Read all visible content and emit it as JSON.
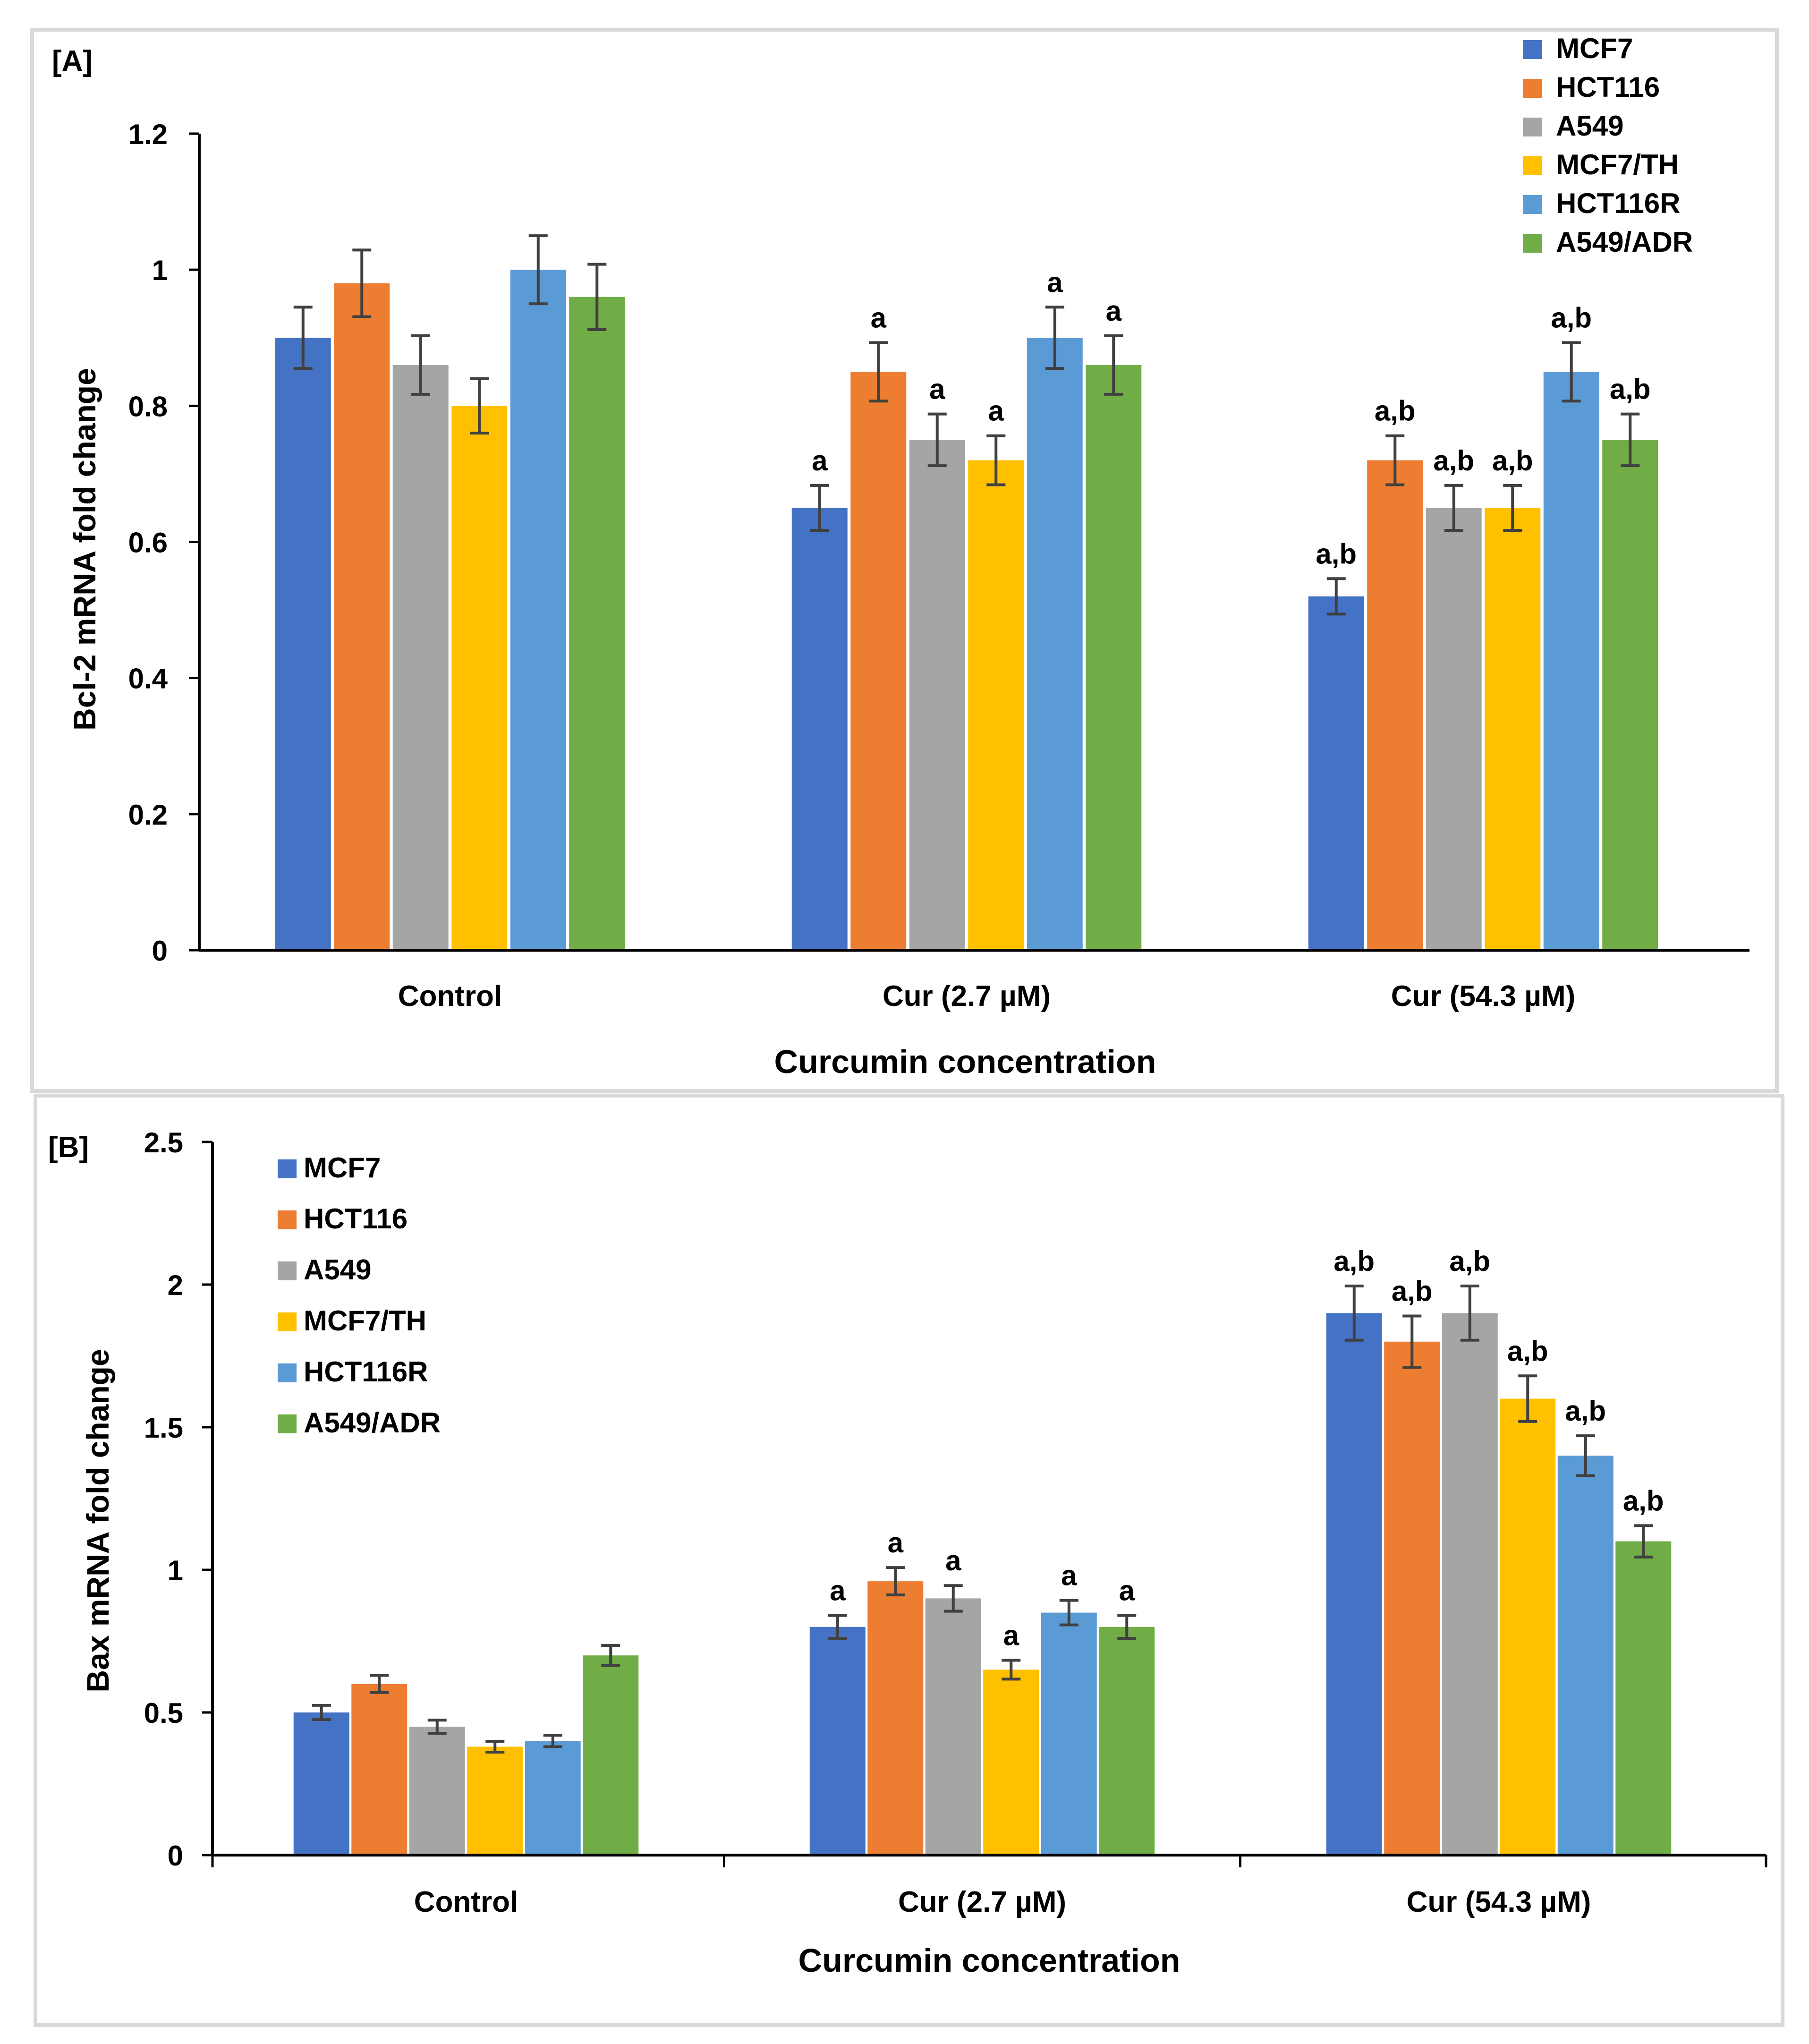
{
  "colors": {
    "MCF7": "#4472c4",
    "HCT116": "#ed7d31",
    "A549": "#a5a5a5",
    "MCF7/TH": "#ffc000",
    "HCT116R": "#5b9bd5",
    "A549/ADR": "#70ad47",
    "axis": "#000000",
    "errorbar": "#404040",
    "panel_border": "#d9d9d9"
  },
  "chart_data": [
    {
      "panel": "[A]",
      "type": "bar",
      "title": "",
      "xlabel": "Curcumin concentration",
      "ylabel": "Bcl-2 mRNA fold change",
      "ylim": [
        0,
        1.2
      ],
      "yticks": [
        "0",
        "0.2",
        "0.4",
        "0.6",
        "0.8",
        "1",
        "1.2"
      ],
      "ytick_values": [
        0,
        0.2,
        0.4,
        0.6,
        0.8,
        1,
        1.2
      ],
      "categories": [
        "Control",
        "Cur (2.7  µM)",
        "Cur (54.3 µM)"
      ],
      "legend_position": "top-right",
      "series": [
        {
          "name": "MCF7",
          "values": [
            0.9,
            0.65,
            0.52
          ],
          "errors": [
            0.045,
            0.033,
            0.026
          ],
          "annotations": [
            "",
            "a",
            "a,b"
          ]
        },
        {
          "name": "HCT116",
          "values": [
            0.98,
            0.85,
            0.72
          ],
          "errors": [
            0.049,
            0.043,
            0.036
          ],
          "annotations": [
            "",
            "a",
            "a,b"
          ]
        },
        {
          "name": "A549",
          "values": [
            0.86,
            0.75,
            0.65
          ],
          "errors": [
            0.043,
            0.038,
            0.033
          ],
          "annotations": [
            "",
            "a",
            "a,b"
          ]
        },
        {
          "name": "MCF7/TH",
          "values": [
            0.8,
            0.72,
            0.65
          ],
          "errors": [
            0.04,
            0.036,
            0.033
          ],
          "annotations": [
            "",
            "a",
            "a,b"
          ]
        },
        {
          "name": "HCT116R",
          "values": [
            1.0,
            0.9,
            0.85
          ],
          "errors": [
            0.05,
            0.045,
            0.043
          ],
          "annotations": [
            "",
            "a",
            "a,b"
          ]
        },
        {
          "name": "A549/ADR",
          "values": [
            0.96,
            0.86,
            0.75
          ],
          "errors": [
            0.048,
            0.043,
            0.038
          ],
          "annotations": [
            "",
            "a",
            "a,b"
          ]
        }
      ]
    },
    {
      "panel": "[B]",
      "type": "bar",
      "title": "",
      "xlabel": "Curcumin concentration",
      "ylabel": "Bax mRNA  fold change",
      "ylim": [
        0,
        2.5
      ],
      "yticks": [
        "0",
        "0.5",
        "1",
        "1.5",
        "2",
        "2.5"
      ],
      "ytick_values": [
        0,
        0.5,
        1,
        1.5,
        2,
        2.5
      ],
      "categories": [
        "Control",
        "Cur (2.7  µM)",
        "Cur (54.3 µM)"
      ],
      "legend_position": "top-left",
      "series": [
        {
          "name": "MCF7",
          "values": [
            0.5,
            0.8,
            1.9
          ],
          "errors": [
            0.025,
            0.04,
            0.095
          ],
          "annotations": [
            "",
            "a",
            "a,b"
          ]
        },
        {
          "name": "HCT116",
          "values": [
            0.6,
            0.96,
            1.8
          ],
          "errors": [
            0.03,
            0.048,
            0.09
          ],
          "annotations": [
            "",
            "a",
            "a,b"
          ]
        },
        {
          "name": "A549",
          "values": [
            0.45,
            0.9,
            1.9
          ],
          "errors": [
            0.023,
            0.045,
            0.095
          ],
          "annotations": [
            "",
            "a",
            "a,b"
          ]
        },
        {
          "name": "MCF7/TH",
          "values": [
            0.38,
            0.65,
            1.6
          ],
          "errors": [
            0.019,
            0.033,
            0.08
          ],
          "annotations": [
            "",
            "a",
            "a,b"
          ]
        },
        {
          "name": "HCT116R",
          "values": [
            0.4,
            0.85,
            1.4
          ],
          "errors": [
            0.02,
            0.043,
            0.07
          ],
          "annotations": [
            "",
            "a",
            "a,b"
          ]
        },
        {
          "name": "A549/ADR",
          "values": [
            0.7,
            0.8,
            1.1
          ],
          "errors": [
            0.035,
            0.04,
            0.055
          ],
          "annotations": [
            "",
            "a",
            "a,b"
          ]
        }
      ]
    }
  ]
}
